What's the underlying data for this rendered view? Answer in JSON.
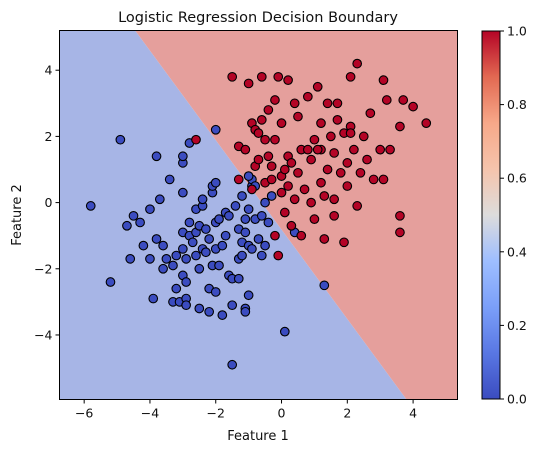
{
  "chart_data": {
    "type": "scatter",
    "title": "Logistic Regression Decision Boundary",
    "xlabel": "Feature 1",
    "ylabel": "Feature 2",
    "xlim": [
      -6.75,
      5.35
    ],
    "ylim": [
      -5.95,
      5.2
    ],
    "xticks": [
      -6,
      -4,
      -2,
      0,
      2,
      4
    ],
    "yticks": [
      -4,
      -2,
      0,
      2,
      4
    ],
    "grid": false,
    "colormap": "coolwarm",
    "colors": {
      "class0_point": "#3b4cc0",
      "class1_point": "#b40426",
      "region0": "#a7b5e6",
      "region1": "#e59f9c",
      "point_edge": "#000000"
    },
    "decision_boundary": {
      "points": [
        [
          -4.45,
          5.2
        ],
        [
          3.8,
          -5.95
        ]
      ]
    },
    "colorbar": {
      "range": [
        0.0,
        1.0
      ],
      "ticks": [
        "0.0",
        "0.2",
        "0.4",
        "0.6",
        "0.8",
        "1.0"
      ]
    },
    "series": [
      {
        "class": 0,
        "points": [
          [
            -4.9,
            1.9
          ],
          [
            -5.8,
            -0.1
          ],
          [
            -5.2,
            -2.4
          ],
          [
            -4.7,
            -0.7
          ],
          [
            -4.6,
            -1.7
          ],
          [
            -4.5,
            -0.4
          ],
          [
            -4.3,
            -0.6
          ],
          [
            -4.2,
            -1.3
          ],
          [
            -4.0,
            -1.7
          ],
          [
            -4.0,
            -0.2
          ],
          [
            -3.9,
            -2.9
          ],
          [
            -3.8,
            1.4
          ],
          [
            -3.7,
            0.1
          ],
          [
            -3.6,
            -1.3
          ],
          [
            -3.6,
            -2.0
          ],
          [
            -3.5,
            -1.7
          ],
          [
            -3.4,
            0.7
          ],
          [
            -3.3,
            -3.0
          ],
          [
            -3.2,
            -1.6
          ],
          [
            -3.2,
            -2.6
          ],
          [
            -3.1,
            -3.0
          ],
          [
            -3.0,
            -2.2
          ],
          [
            -3.0,
            -1.4
          ],
          [
            -3.0,
            -0.9
          ],
          [
            -3.0,
            0.3
          ],
          [
            -3.0,
            1.2
          ],
          [
            -3.0,
            1.4
          ],
          [
            -2.9,
            -2.9
          ],
          [
            -2.9,
            -2.4
          ],
          [
            -2.9,
            -1.7
          ],
          [
            -2.8,
            -1.0
          ],
          [
            -2.8,
            -0.6
          ],
          [
            -2.8,
            1.8
          ],
          [
            -2.7,
            -1.2
          ],
          [
            -2.6,
            -0.9
          ],
          [
            -2.6,
            -0.2
          ],
          [
            -2.5,
            -0.7
          ],
          [
            -2.5,
            -2.0
          ],
          [
            -2.5,
            -3.2
          ],
          [
            -2.4,
            -1.4
          ],
          [
            -2.4,
            -0.1
          ],
          [
            -2.4,
            0.1
          ],
          [
            -2.3,
            -0.8
          ],
          [
            -2.3,
            -1.5
          ],
          [
            -2.2,
            -1.1
          ],
          [
            -2.2,
            -2.6
          ],
          [
            -2.2,
            -3.3
          ],
          [
            -2.1,
            -1.9
          ],
          [
            -2.1,
            0.3
          ],
          [
            -2.1,
            0.5
          ],
          [
            -2.0,
            -2.7
          ],
          [
            -2.0,
            -1.4
          ],
          [
            -2.0,
            -0.6
          ],
          [
            -2.0,
            0.6
          ],
          [
            -2.0,
            2.2
          ],
          [
            -1.9,
            -0.5
          ],
          [
            -1.9,
            -1.9
          ],
          [
            -1.8,
            -1.3
          ],
          [
            -1.8,
            -3.4
          ],
          [
            -1.7,
            -0.3
          ],
          [
            -1.7,
            -1.0
          ],
          [
            -1.6,
            -2.2
          ],
          [
            -1.5,
            -2.3
          ],
          [
            -1.5,
            -3.1
          ],
          [
            -1.5,
            -4.9
          ],
          [
            -1.4,
            -0.1
          ],
          [
            -1.3,
            -0.8
          ],
          [
            -1.3,
            -1.7
          ],
          [
            -1.3,
            -2.3
          ],
          [
            -1.2,
            -1.2
          ],
          [
            -1.2,
            -1.6
          ],
          [
            -1.2,
            0.2
          ],
          [
            -1.1,
            -0.5
          ],
          [
            -1.1,
            -0.9
          ],
          [
            -1.1,
            -3.2
          ],
          [
            -1.1,
            -3.3
          ],
          [
            -1.0,
            -2.8
          ],
          [
            -1.0,
            -1.3
          ],
          [
            -1.0,
            -0.2
          ],
          [
            -0.9,
            0.5
          ],
          [
            -0.9,
            0.7
          ],
          [
            -0.9,
            -1.4
          ],
          [
            -0.8,
            0.5
          ],
          [
            -0.8,
            -0.5
          ],
          [
            -0.7,
            -1.1
          ],
          [
            -0.6,
            -0.4
          ],
          [
            -0.6,
            -1.6
          ],
          [
            -0.5,
            -1.3
          ],
          [
            -0.4,
            -0.6
          ],
          [
            -0.3,
            0.2
          ],
          [
            0.1,
            -3.9
          ],
          [
            0.4,
            -0.9
          ],
          [
            1.3,
            -2.5
          ],
          [
            -1.0,
            0.8
          ],
          [
            -0.5,
            0.0
          ],
          [
            -2.6,
            -1.6
          ],
          [
            -3.3,
            -1.9
          ],
          [
            -3.8,
            -1.1
          ],
          [
            -2.9,
            -3.1
          ],
          [
            -1.6,
            -0.4
          ]
        ]
      },
      {
        "class": 1,
        "points": [
          [
            -2.6,
            1.9
          ],
          [
            -1.5,
            3.8
          ],
          [
            -1.3,
            1.7
          ],
          [
            -1.3,
            0.7
          ],
          [
            -1.1,
            1.6
          ],
          [
            -1.0,
            3.6
          ],
          [
            -0.9,
            0.4
          ],
          [
            -0.9,
            2.4
          ],
          [
            -0.8,
            1.1
          ],
          [
            -0.8,
            2.2
          ],
          [
            -0.7,
            1.3
          ],
          [
            -0.7,
            2.1
          ],
          [
            -0.6,
            2.5
          ],
          [
            -0.6,
            3.8
          ],
          [
            -0.5,
            0.6
          ],
          [
            -0.5,
            1.9
          ],
          [
            -0.4,
            1.4
          ],
          [
            -0.4,
            2.8
          ],
          [
            -0.3,
            0.7
          ],
          [
            -0.3,
            1.1
          ],
          [
            -0.2,
            -1.0
          ],
          [
            -0.2,
            1.9
          ],
          [
            -0.2,
            3.1
          ],
          [
            -0.1,
            3.8
          ],
          [
            -0.1,
            -1.6
          ],
          [
            0.0,
            0.3
          ],
          [
            0.0,
            0.8
          ],
          [
            0.0,
            2.4
          ],
          [
            0.1,
            -0.3
          ],
          [
            0.1,
            1.0
          ],
          [
            0.2,
            0.5
          ],
          [
            0.2,
            1.4
          ],
          [
            0.2,
            3.7
          ],
          [
            0.3,
            -0.7
          ],
          [
            0.3,
            1.2
          ],
          [
            0.4,
            0.1
          ],
          [
            0.5,
            0.9
          ],
          [
            0.5,
            2.6
          ],
          [
            0.6,
            1.6
          ],
          [
            0.6,
            -1.0
          ],
          [
            0.7,
            0.4
          ],
          [
            0.8,
            3.2
          ],
          [
            0.9,
            1.3
          ],
          [
            0.9,
            0.0
          ],
          [
            1.0,
            -0.5
          ],
          [
            1.0,
            1.9
          ],
          [
            1.1,
            3.5
          ],
          [
            1.2,
            0.6
          ],
          [
            1.2,
            1.6
          ],
          [
            1.2,
            2.4
          ],
          [
            1.3,
            -1.1
          ],
          [
            1.3,
            0.2
          ],
          [
            1.4,
            1.0
          ],
          [
            1.4,
            3.0
          ],
          [
            1.5,
            2.0
          ],
          [
            1.6,
            -0.4
          ],
          [
            1.6,
            1.5
          ],
          [
            1.7,
            2.5
          ],
          [
            1.7,
            3.0
          ],
          [
            1.8,
            0.9
          ],
          [
            1.9,
            -1.2
          ],
          [
            1.9,
            2.1
          ],
          [
            2.0,
            0.5
          ],
          [
            2.0,
            1.2
          ],
          [
            2.1,
            2.3
          ],
          [
            2.1,
            3.8
          ],
          [
            2.2,
            1.6
          ],
          [
            2.3,
            -0.1
          ],
          [
            2.3,
            4.2
          ],
          [
            2.4,
            0.9
          ],
          [
            2.5,
            2.0
          ],
          [
            2.6,
            1.3
          ],
          [
            2.7,
            2.7
          ],
          [
            2.8,
            0.7
          ],
          [
            3.0,
            1.6
          ],
          [
            3.1,
            3.7
          ],
          [
            3.1,
            0.7
          ],
          [
            3.2,
            3.1
          ],
          [
            3.3,
            1.6
          ],
          [
            3.6,
            2.3
          ],
          [
            3.6,
            -0.4
          ],
          [
            3.6,
            -0.9
          ],
          [
            3.7,
            3.1
          ],
          [
            4.0,
            2.9
          ],
          [
            4.4,
            2.4
          ],
          [
            0.4,
            3.0
          ],
          [
            2.1,
            2.1
          ],
          [
            1.1,
            1.6
          ],
          [
            0.8,
            1.6
          ],
          [
            1.6,
            0.1
          ]
        ]
      }
    ]
  }
}
